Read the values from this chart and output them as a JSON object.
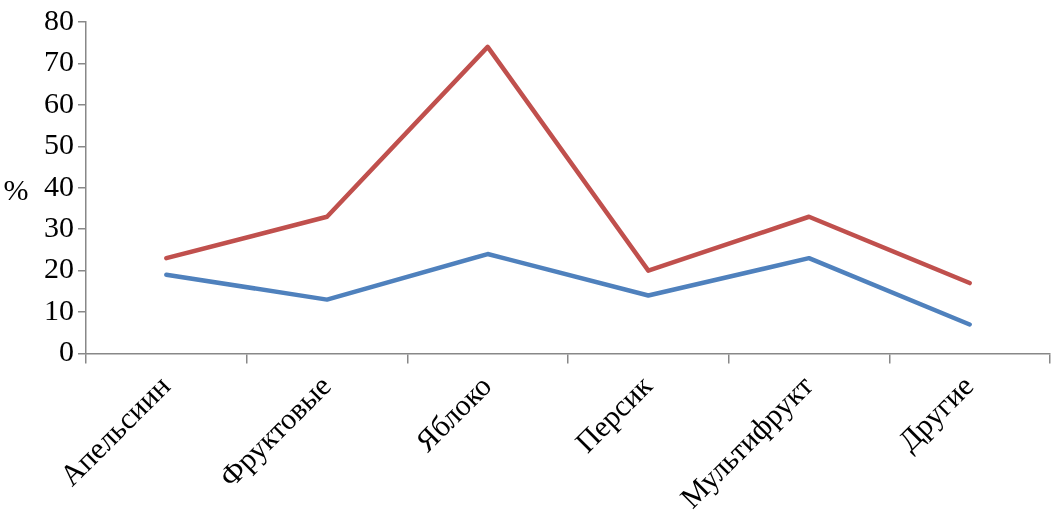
{
  "chart_data": {
    "type": "line",
    "ylabel": "%",
    "categories": [
      "Апельсиин",
      "Фруктовые",
      "Яблоко",
      "Персик",
      "Мультифрукт",
      "Другие"
    ],
    "series": [
      {
        "color": "#4f81bd",
        "values": [
          19,
          13,
          24,
          14,
          23,
          7
        ]
      },
      {
        "color": "#c0504d",
        "values": [
          23,
          33,
          74,
          20,
          33,
          17
        ]
      }
    ],
    "ylim": [
      0,
      80
    ],
    "yticks": [
      0,
      10,
      20,
      30,
      40,
      50,
      60,
      70,
      80
    ],
    "grid": false,
    "legend": false,
    "marker": "none",
    "line_style": "solid"
  }
}
